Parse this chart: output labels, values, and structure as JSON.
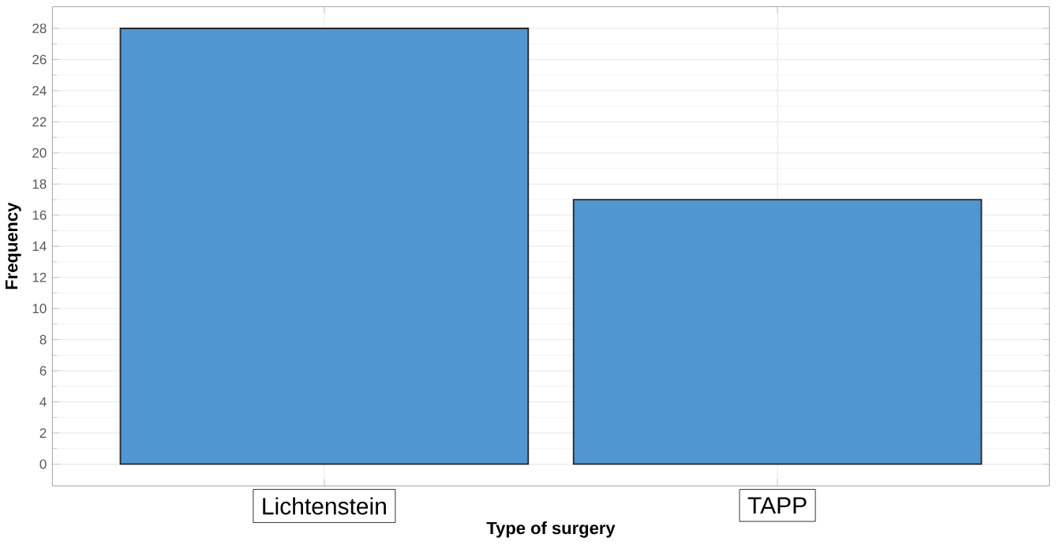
{
  "chart_data": {
    "type": "bar",
    "xlabel": "Type of surgery",
    "ylabel": "Frequency",
    "categories": [
      "Lichtenstein",
      "TAPP"
    ],
    "values": [
      28,
      17
    ],
    "color": "#5096d0",
    "ylim": [
      -1.4,
      29.4
    ],
    "yticks": [
      0,
      2,
      4,
      6,
      8,
      10,
      12,
      14,
      16,
      18,
      20,
      22,
      24,
      26,
      28
    ],
    "grid": true
  }
}
